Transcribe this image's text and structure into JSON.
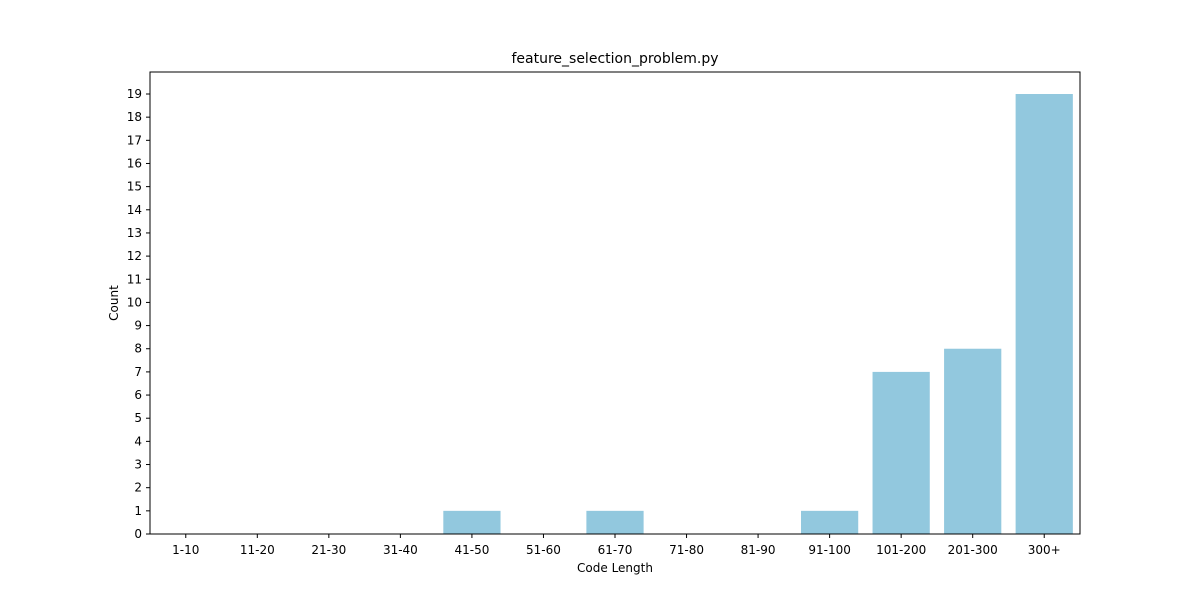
{
  "chart_data": {
    "type": "bar",
    "title": "feature_selection_problem.py",
    "xlabel": "Code Length",
    "ylabel": "Count",
    "categories": [
      "1-10",
      "11-20",
      "21-30",
      "31-40",
      "41-50",
      "51-60",
      "61-70",
      "71-80",
      "81-90",
      "91-100",
      "101-200",
      "201-300",
      "300+"
    ],
    "values": [
      0,
      0,
      0,
      0,
      1,
      0,
      1,
      0,
      0,
      1,
      7,
      8,
      19
    ],
    "ylim": [
      0,
      19.95
    ],
    "yticks": [
      0,
      1,
      2,
      3,
      4,
      5,
      6,
      7,
      8,
      9,
      10,
      11,
      12,
      13,
      14,
      15,
      16,
      17,
      18,
      19
    ],
    "grid": false,
    "bar_color": "#92c8de"
  }
}
